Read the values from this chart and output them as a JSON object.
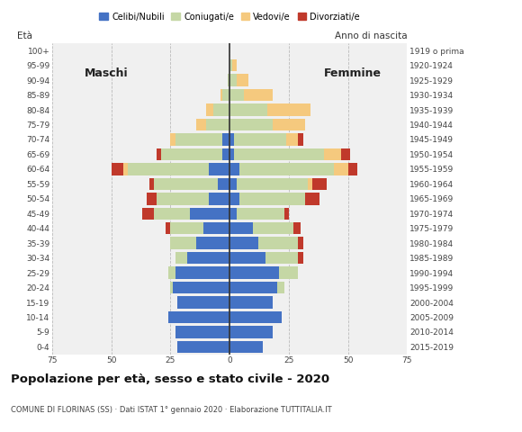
{
  "age_groups": [
    "0-4",
    "5-9",
    "10-14",
    "15-19",
    "20-24",
    "25-29",
    "30-34",
    "35-39",
    "40-44",
    "45-49",
    "50-54",
    "55-59",
    "60-64",
    "65-69",
    "70-74",
    "75-79",
    "80-84",
    "85-89",
    "90-94",
    "95-99",
    "100+"
  ],
  "birth_years": [
    "2015-2019",
    "2010-2014",
    "2005-2009",
    "2000-2004",
    "1995-1999",
    "1990-1994",
    "1985-1989",
    "1980-1984",
    "1975-1979",
    "1970-1974",
    "1965-1969",
    "1960-1964",
    "1955-1959",
    "1950-1954",
    "1945-1949",
    "1940-1944",
    "1935-1939",
    "1930-1934",
    "1925-1929",
    "1920-1924",
    "1919 o prima"
  ],
  "males": {
    "celibi": [
      22,
      23,
      26,
      22,
      24,
      23,
      18,
      14,
      11,
      17,
      9,
      5,
      9,
      3,
      3,
      0,
      0,
      0,
      0,
      0,
      0
    ],
    "coniugati": [
      0,
      0,
      0,
      0,
      1,
      3,
      5,
      11,
      14,
      15,
      22,
      27,
      34,
      26,
      20,
      10,
      7,
      3,
      1,
      0,
      0
    ],
    "vedovi": [
      0,
      0,
      0,
      0,
      0,
      0,
      0,
      0,
      0,
      0,
      0,
      0,
      2,
      0,
      2,
      4,
      3,
      1,
      0,
      0,
      0
    ],
    "divorziati": [
      0,
      0,
      0,
      0,
      0,
      0,
      0,
      0,
      2,
      5,
      4,
      2,
      5,
      2,
      0,
      0,
      0,
      0,
      0,
      0,
      0
    ]
  },
  "females": {
    "nubili": [
      14,
      18,
      22,
      18,
      20,
      21,
      15,
      12,
      10,
      3,
      4,
      3,
      4,
      2,
      2,
      0,
      0,
      0,
      0,
      0,
      0
    ],
    "coniugate": [
      0,
      0,
      0,
      0,
      3,
      8,
      14,
      17,
      17,
      20,
      28,
      30,
      40,
      38,
      22,
      18,
      16,
      6,
      3,
      1,
      0
    ],
    "vedove": [
      0,
      0,
      0,
      0,
      0,
      0,
      0,
      0,
      0,
      0,
      0,
      2,
      6,
      7,
      5,
      14,
      18,
      12,
      5,
      2,
      0
    ],
    "divorziate": [
      0,
      0,
      0,
      0,
      0,
      0,
      2,
      2,
      3,
      2,
      6,
      6,
      4,
      4,
      2,
      0,
      0,
      0,
      0,
      0,
      0
    ]
  },
  "colors": {
    "celibi": "#4472c4",
    "coniugati": "#c5d7a5",
    "vedovi": "#f5c97e",
    "divorziati": "#c0392b"
  },
  "xlim": 75,
  "title": "Popolazione per età, sesso e stato civile - 2020",
  "subtitle": "COMUNE DI FLORINAS (SS) · Dati ISTAT 1° gennaio 2020 · Elaborazione TUTTITALIA.IT",
  "ylabel_left": "Età",
  "ylabel_right": "Anno di nascita",
  "label_maschi": "Maschi",
  "label_femmine": "Femmine",
  "legend_labels": [
    "Celibi/Nubili",
    "Coniugati/e",
    "Vedovi/e",
    "Divorziati/e"
  ],
  "background_color": "#ffffff",
  "plot_bg": "#f0f0f0"
}
